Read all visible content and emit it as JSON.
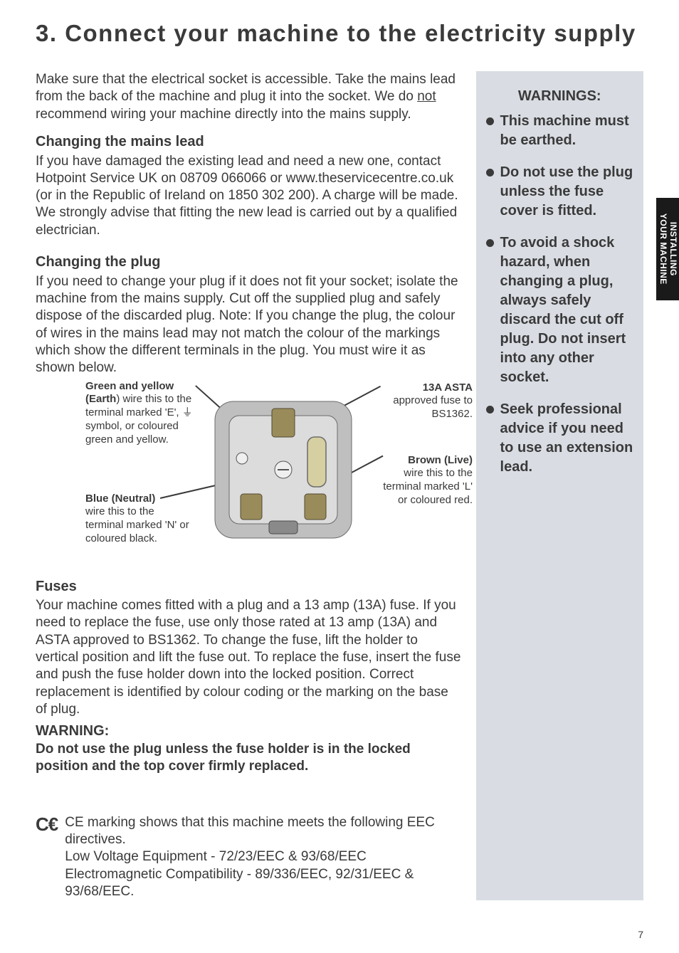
{
  "title": "3. Connect your machine to the electricity supply",
  "intro": "Make sure that the electrical socket is accessible.  Take the mains lead from the back of the machine and plug it into the socket.  We do ",
  "intro_not": "not",
  "intro_tail": " recommend wiring your machine directly into the mains supply.",
  "mains_head": "Changing the mains lead",
  "mains_body": "If you have damaged the existing lead and need a new one, contact Hotpoint Service UK on 08709 066066 or www.theservicecentre.co.uk (or in the  Republic of Ireland on 1850 302 200).  A charge will be made. We strongly advise that fitting the new lead is carried out by a qualified electrician.",
  "plug_head": "Changing the plug",
  "plug_body": "If you need to change your plug if it does not fit your socket; isolate the machine from the mains supply. Cut off the supplied plug and safely dispose of the discarded plug. Note:  If you change the plug, the colour of wires in the mains lead may not match the colour of the markings  which show the different terminals in the plug.  You must wire it as shown below.",
  "callouts": {
    "earth_b": "Green and yellow (Earth",
    "earth_t": ") wire this to the terminal marked 'E', ⏚ symbol, or coloured green and yellow.",
    "neutral_b": "Blue (Neutral)",
    "neutral_t": "wire this to the terminal marked 'N' or coloured black.",
    "asta_b": "13A ASTA",
    "asta_t": "approved fuse to BS1362.",
    "live_b": "Brown (Live)",
    "live_t": "wire this to the terminal marked 'L' or coloured red."
  },
  "fuses_head": "Fuses",
  "fuses_body": "Your machine comes fitted with a plug and a 13 amp (13A) fuse.  If you need to replace the fuse, use only those rated at 13 amp (13A) and ASTA approved to BS1362.  To change the fuse, lift the holder to vertical position and lift the fuse out.  To replace the fuse, insert the fuse and push the fuse holder down into the locked position.  Correct replacement is identified by colour coding or the marking on the base of plug.",
  "warn_head": "WARNING:",
  "warn_body": "Do not use the plug unless the fuse  holder is in the locked position and the top cover firmly replaced.",
  "ce_text": "CE marking shows that this machine meets the following EEC directives.\nLow Voltage Equipment - 72/23/EEC & 93/68/EEC\nElectromagnetic Compatibility - 89/336/EEC, 92/31/EEC & 93/68/EEC.",
  "warnings_head": "WARNINGS:",
  "warnings": [
    "This machine must be earthed.",
    "Do not use the plug unless the fuse cover is  fitted.",
    "To avoid a shock hazard, when changing a plug,  always safely discard the cut off plug. Do not insert into any other socket.",
    "Seek professional advice if you need to use an extension lead."
  ],
  "side_tab": "INSTALLING\nYOUR MACHINE",
  "page_number": "7"
}
